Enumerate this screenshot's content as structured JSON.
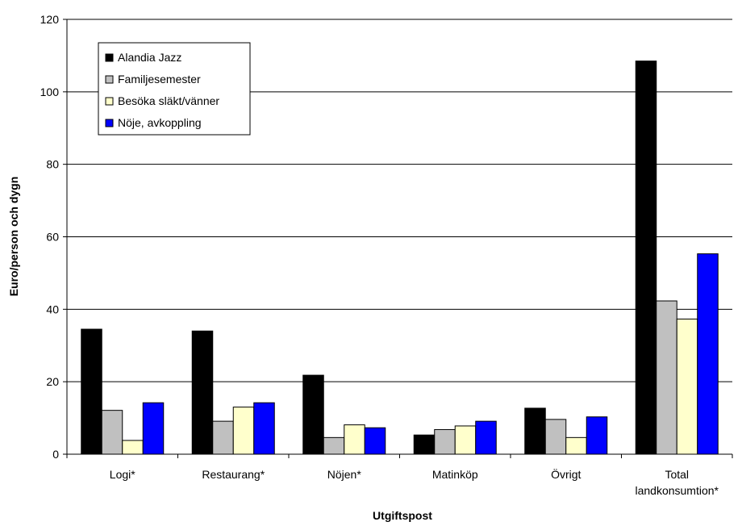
{
  "chart_data": {
    "type": "bar",
    "title": "",
    "xlabel": "Utgiftspost",
    "ylabel": "Euro/person och dygn",
    "ylim": [
      0,
      120
    ],
    "yticks": [
      "0",
      "20",
      "40",
      "60",
      "80",
      "100",
      "120"
    ],
    "grid": true,
    "legend_position": "top-left",
    "categories": [
      [
        "Logi*"
      ],
      [
        "Restaurang*"
      ],
      [
        "Nöjen*"
      ],
      [
        "Matinköp"
      ],
      [
        "Övrigt"
      ],
      [
        "Total",
        "landkonsumtion*"
      ]
    ],
    "series": [
      {
        "name": "Alandia Jazz",
        "color": "#000000",
        "values": [
          34.5,
          34.0,
          21.8,
          5.3,
          12.7,
          108.5
        ]
      },
      {
        "name": "Familjesemester",
        "color": "#c0c0c0",
        "values": [
          12.1,
          9.1,
          4.6,
          6.8,
          9.6,
          42.3
        ]
      },
      {
        "name": "Besöka släkt/vänner",
        "color": "#ffffcc",
        "values": [
          3.8,
          13.0,
          8.1,
          7.8,
          4.6,
          37.3
        ]
      },
      {
        "name": "Nöje, avkoppling",
        "color": "#0000ff",
        "values": [
          14.2,
          14.2,
          7.3,
          9.1,
          10.3,
          55.3
        ]
      }
    ]
  }
}
